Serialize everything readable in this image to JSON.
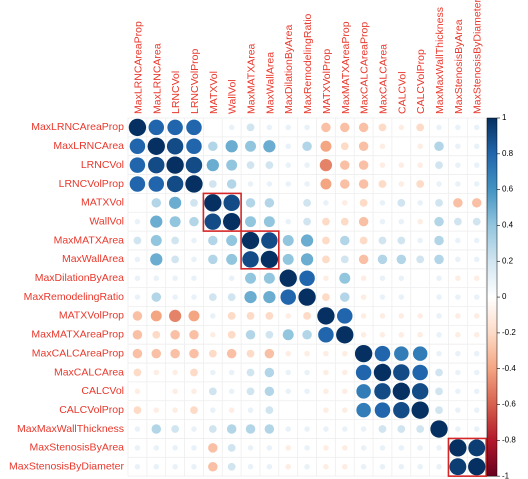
{
  "chart_data": {
    "type": "correlation",
    "variables": [
      "MaxLRNCAreaProp",
      "MaxLRNCArea",
      "LRNCVol",
      "LRNCVolProp",
      "MATXVol",
      "WallVol",
      "MaxMATXArea",
      "MaxWallArea",
      "MaxDilationByArea",
      "MaxRemodelingRatio",
      "MATXVolProp",
      "MaxMATXAreaProp",
      "MaxCALCAreaProp",
      "MaxCALCArea",
      "CALCVol",
      "CALCVolProp",
      "MaxMaxWallThickness",
      "MaxStenosisByArea",
      "MaxStenosisByDiameter"
    ],
    "values": [
      [
        1,
        0.8,
        0.8,
        0.8,
        0,
        0.1,
        0.2,
        0.1,
        0.1,
        0.1,
        -0.3,
        -0.3,
        -0.3,
        -0.2,
        -0.1,
        -0.2,
        0.1,
        0.1,
        0.1
      ],
      [
        0.8,
        1,
        0.9,
        0.8,
        0.3,
        0.5,
        0.4,
        0.5,
        0.1,
        0.3,
        -0.4,
        -0.2,
        -0.3,
        -0.1,
        0,
        -0.1,
        0.3,
        0.1,
        0.1
      ],
      [
        0.8,
        0.9,
        1,
        0.9,
        0.5,
        0.4,
        0.2,
        0.2,
        0.1,
        0.1,
        -0.5,
        -0.3,
        -0.3,
        -0.1,
        -0.1,
        -0.1,
        0.2,
        0.1,
        0.1
      ],
      [
        0.8,
        0.8,
        0.9,
        1,
        0.2,
        0.3,
        0.1,
        0.1,
        0.1,
        0.1,
        -0.4,
        -0.3,
        -0.3,
        -0.2,
        -0.1,
        -0.2,
        0.1,
        0.1,
        0.1
      ],
      [
        0,
        0.3,
        0.5,
        0.2,
        1,
        0.9,
        0.3,
        0.3,
        0,
        0.2,
        0.1,
        -0.1,
        -0.2,
        0.1,
        0.2,
        0.1,
        0.2,
        -0.3,
        -0.3
      ],
      [
        0.1,
        0.5,
        0.4,
        0.3,
        0.9,
        1,
        0.4,
        0.4,
        0.1,
        0.2,
        -0.2,
        -0.2,
        -0.3,
        0.1,
        0.1,
        -0.1,
        0.3,
        0.2,
        0.2
      ],
      [
        0.2,
        0.4,
        0.2,
        0.1,
        0.3,
        0.4,
        1,
        0.9,
        0.4,
        0.5,
        -0.2,
        0.3,
        -0.2,
        0.2,
        0.2,
        0.1,
        0.3,
        0.1,
        0.1
      ],
      [
        0.1,
        0.5,
        0.2,
        0.1,
        0.3,
        0.4,
        0.9,
        1,
        0.4,
        0.5,
        -0.2,
        0.2,
        -0.3,
        0.3,
        0.3,
        0.2,
        0.3,
        0.1,
        0.1
      ],
      [
        0.1,
        0.1,
        0.1,
        0.1,
        0,
        0.1,
        0.4,
        0.4,
        1,
        0.8,
        -0.1,
        0.4,
        -0.1,
        0.1,
        0.1,
        0,
        0.1,
        -0.1,
        -0.1
      ],
      [
        0.1,
        0.3,
        0.1,
        0.1,
        0.2,
        0.2,
        0.5,
        0.5,
        0.8,
        1,
        -0.2,
        0.3,
        -0.1,
        0.1,
        0.1,
        0,
        0.1,
        0.1,
        0.1
      ],
      [
        -0.3,
        -0.4,
        -0.5,
        -0.4,
        0.1,
        -0.2,
        -0.2,
        -0.2,
        -0.1,
        -0.2,
        1,
        0.8,
        -0.1,
        -0.1,
        -0.1,
        -0.1,
        0.1,
        -0.1,
        -0.1
      ],
      [
        -0.3,
        -0.2,
        -0.3,
        -0.3,
        -0.1,
        -0.2,
        0.3,
        0.2,
        0.4,
        0.3,
        0.8,
        1,
        -0.1,
        -0.1,
        -0.1,
        -0.1,
        0.1,
        -0.1,
        -0.1
      ],
      [
        -0.3,
        -0.3,
        -0.3,
        -0.3,
        -0.2,
        -0.3,
        -0.2,
        -0.3,
        -0.1,
        -0.1,
        -0.1,
        -0.1,
        1,
        0.8,
        0.7,
        0.7,
        0.1,
        0.1,
        0.1
      ],
      [
        -0.2,
        -0.1,
        -0.1,
        -0.2,
        0.1,
        0.1,
        0.2,
        0.3,
        0.1,
        0.1,
        -0.1,
        -0.1,
        0.8,
        1,
        0.9,
        0.8,
        0.2,
        0.1,
        0.1
      ],
      [
        -0.1,
        0,
        -0.1,
        -0.1,
        0.2,
        0.1,
        0.2,
        0.3,
        0.1,
        0.1,
        -0.1,
        -0.1,
        0.7,
        0.9,
        1,
        0.9,
        0.2,
        0.1,
        0.1
      ],
      [
        -0.2,
        -0.1,
        -0.1,
        -0.2,
        0.1,
        -0.1,
        0.1,
        0.2,
        0,
        0,
        -0.1,
        -0.1,
        0.7,
        0.8,
        0.9,
        1,
        0.2,
        0.1,
        0.1
      ],
      [
        0.1,
        0.3,
        0.2,
        0.1,
        0.2,
        0.3,
        0.3,
        0.3,
        0.1,
        0.1,
        0.1,
        0.1,
        0.1,
        0.2,
        0.2,
        0.2,
        1,
        0.1,
        0.1
      ],
      [
        0.1,
        0.1,
        0.1,
        0.1,
        -0.3,
        0.2,
        0.1,
        0.1,
        -0.1,
        0.1,
        -0.1,
        -0.1,
        0.1,
        0.1,
        0.1,
        0.1,
        0.1,
        1,
        0.95
      ],
      [
        0.1,
        0.1,
        0.1,
        0.1,
        -0.3,
        0.2,
        0.1,
        0.1,
        -0.1,
        0.1,
        -0.1,
        -0.1,
        0.1,
        0.1,
        0.1,
        0.1,
        0.1,
        0.95,
        1
      ]
    ],
    "clim": [
      -1,
      1
    ],
    "cticks": [
      1,
      0.8,
      0.6,
      0.4,
      0.2,
      0,
      -0.2,
      -0.4,
      -0.6,
      -0.8,
      -1
    ],
    "colors": [
      "#67001F",
      "#B2182B",
      "#D6604D",
      "#F4A582",
      "#FDDBC7",
      "#FFFFFF",
      "#D1E5F0",
      "#92C5DE",
      "#4393C3",
      "#2166AC",
      "#053061"
    ]
  }
}
